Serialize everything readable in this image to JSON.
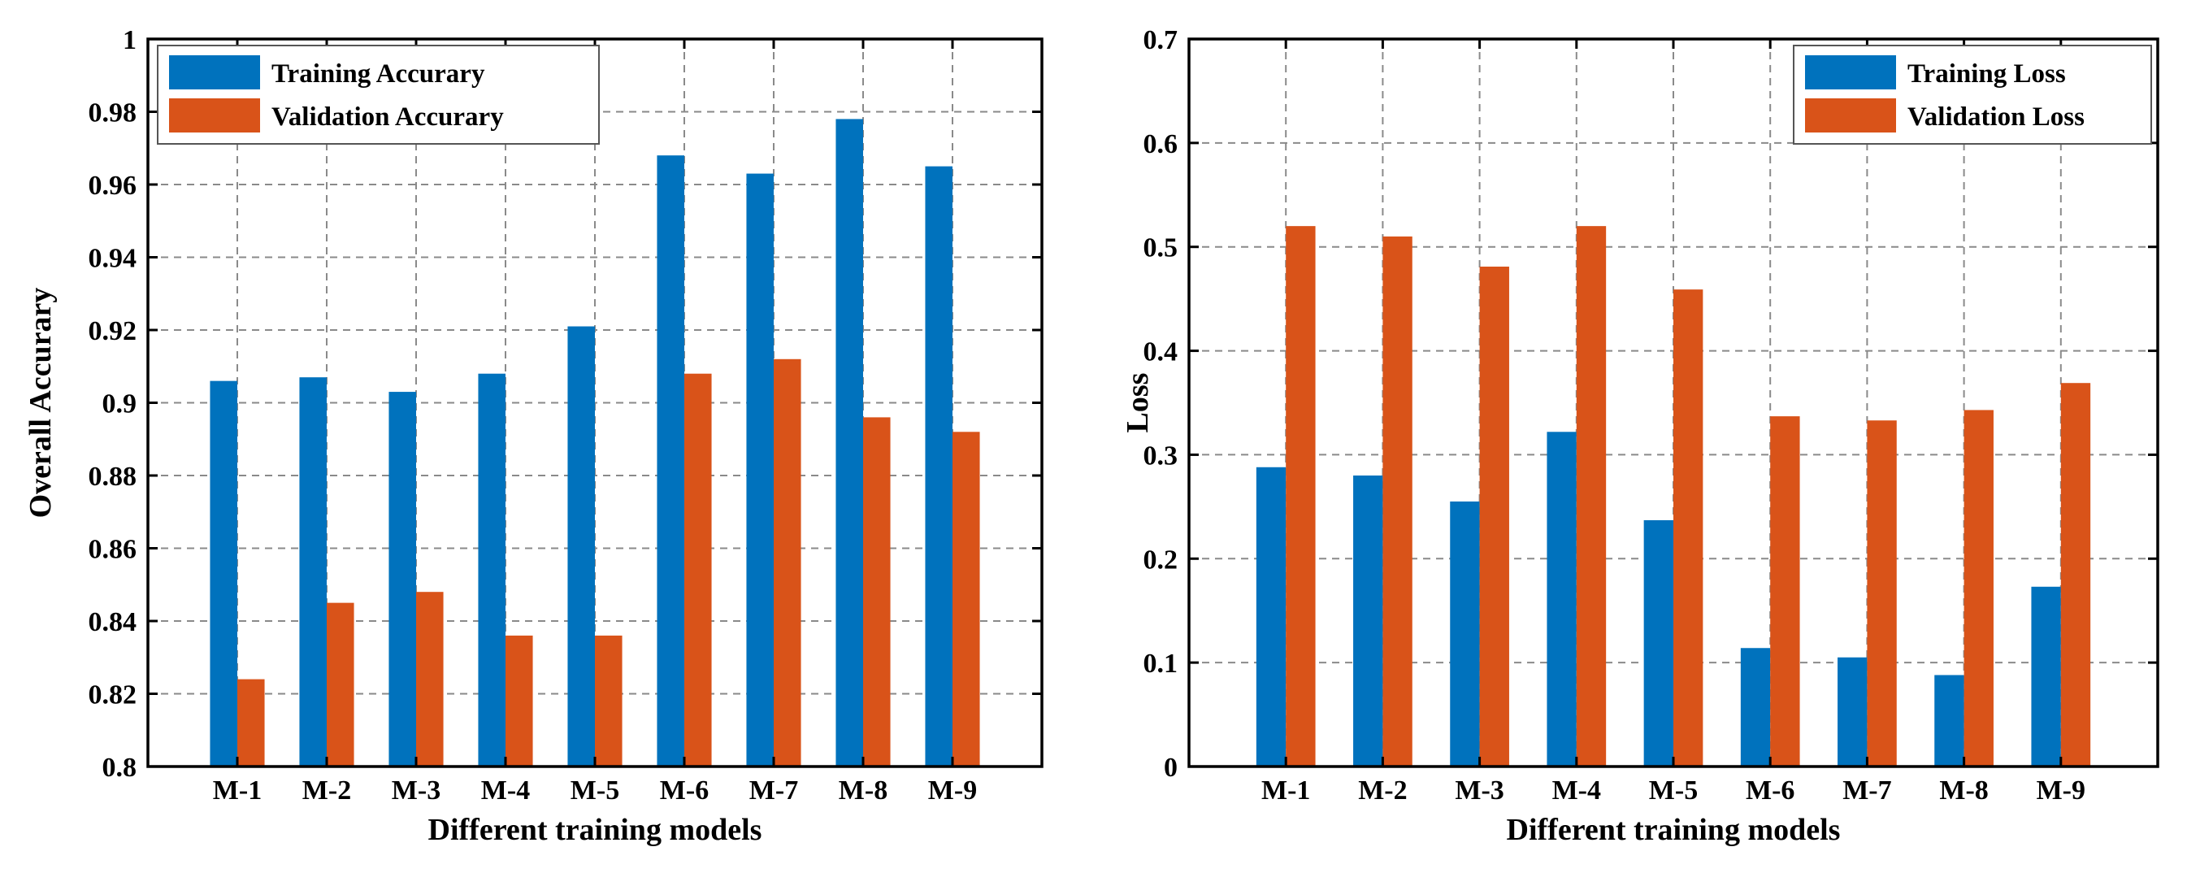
{
  "chart_data": [
    {
      "type": "bar",
      "title": "",
      "xlabel": "Different training models",
      "ylabel": "Overall Accurary",
      "ylim": [
        0.8,
        1.0
      ],
      "yticks": [
        0.8,
        0.82,
        0.84,
        0.86,
        0.88,
        0.9,
        0.92,
        0.94,
        0.96,
        0.98,
        1
      ],
      "ytick_labels": [
        "0.8",
        "0.82",
        "0.84",
        "0.86",
        "0.88",
        "0.9",
        "0.92",
        "0.94",
        "0.96",
        "0.98",
        "1"
      ],
      "categories": [
        "M-1",
        "M-2",
        "M-3",
        "M-4",
        "M-5",
        "M-6",
        "M-7",
        "M-8",
        "M-9"
      ],
      "grid": true,
      "legend_position": "top-left",
      "series": [
        {
          "name": "Training Accurary",
          "color": "#0072BD",
          "values": [
            0.906,
            0.907,
            0.903,
            0.908,
            0.921,
            0.968,
            0.963,
            0.978,
            0.965
          ]
        },
        {
          "name": "Validation Accurary",
          "color": "#D95319",
          "values": [
            0.824,
            0.845,
            0.848,
            0.836,
            0.836,
            0.908,
            0.912,
            0.896,
            0.892
          ]
        }
      ]
    },
    {
      "type": "bar",
      "title": "",
      "xlabel": "Different training models",
      "ylabel": "Loss",
      "ylim": [
        0,
        0.7
      ],
      "yticks": [
        0,
        0.1,
        0.2,
        0.3,
        0.4,
        0.5,
        0.6,
        0.7
      ],
      "ytick_labels": [
        "0",
        "0.1",
        "0.2",
        "0.3",
        "0.4",
        "0.5",
        "0.6",
        "0.7"
      ],
      "categories": [
        "M-1",
        "M-2",
        "M-3",
        "M-4",
        "M-5",
        "M-6",
        "M-7",
        "M-8",
        "M-9"
      ],
      "grid": true,
      "legend_position": "top-right",
      "series": [
        {
          "name": "Training Loss",
          "color": "#0072BD",
          "values": [
            0.288,
            0.28,
            0.255,
            0.322,
            0.237,
            0.114,
            0.105,
            0.088,
            0.173
          ]
        },
        {
          "name": "Validation Loss",
          "color": "#D95319",
          "values": [
            0.52,
            0.51,
            0.481,
            0.52,
            0.459,
            0.337,
            0.333,
            0.343,
            0.369
          ]
        }
      ]
    }
  ]
}
